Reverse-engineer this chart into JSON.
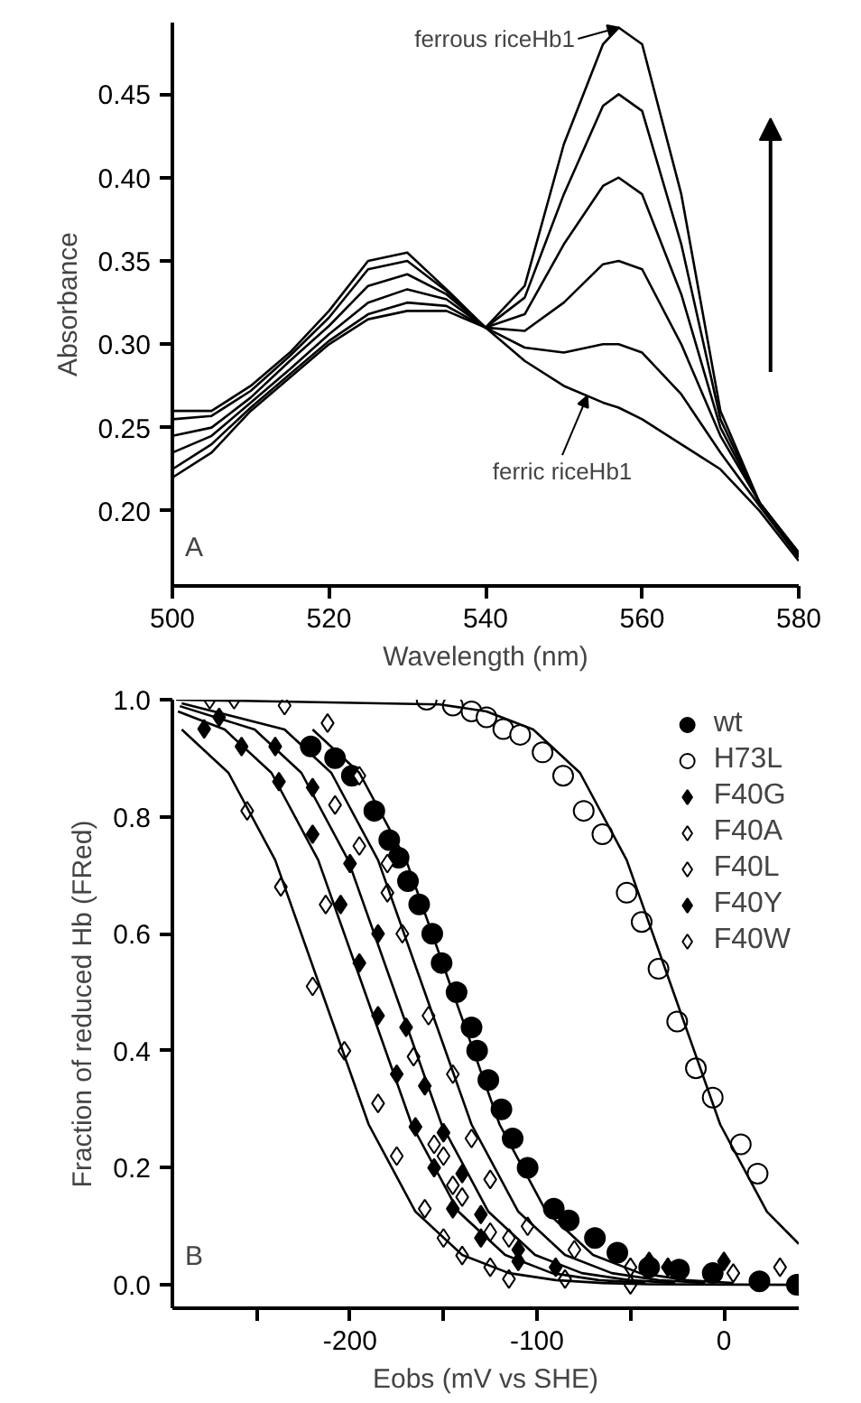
{
  "chart_data": [
    {
      "type": "line",
      "xlabel": "Wavelength (nm)",
      "ylabel": "Absorbance",
      "xlim": [
        500,
        580
      ],
      "ylim": [
        0.155,
        0.493
      ],
      "xticks": [
        500,
        520,
        540,
        560,
        580
      ],
      "yticks": [
        {
          "value": 0.2,
          "label": "0.20"
        },
        {
          "value": 0.25,
          "label": "0.25"
        },
        {
          "value": 0.3,
          "label": "0.30"
        },
        {
          "value": 0.35,
          "label": "0.35"
        },
        {
          "value": 0.4,
          "label": "0.40"
        },
        {
          "value": 0.45,
          "label": "0.45"
        }
      ],
      "grid": false,
      "legend": false,
      "x": [
        500,
        505,
        510,
        515,
        520,
        525,
        530,
        535,
        540,
        545,
        550,
        555,
        557,
        560,
        565,
        570,
        575,
        580
      ],
      "series": [
        {
          "color": "#000000",
          "values": [
            0.22,
            0.235,
            0.26,
            0.28,
            0.3,
            0.315,
            0.32,
            0.32,
            0.31,
            0.29,
            0.275,
            0.265,
            0.262,
            0.255,
            0.24,
            0.225,
            0.2,
            0.17
          ]
        },
        {
          "color": "#000000",
          "values": [
            0.225,
            0.24,
            0.262,
            0.282,
            0.302,
            0.318,
            0.325,
            0.323,
            0.31,
            0.298,
            0.295,
            0.3,
            0.3,
            0.295,
            0.27,
            0.235,
            0.203,
            0.172
          ]
        },
        {
          "color": "#000000",
          "values": [
            0.235,
            0.245,
            0.265,
            0.285,
            0.306,
            0.325,
            0.333,
            0.327,
            0.31,
            0.308,
            0.325,
            0.348,
            0.35,
            0.345,
            0.3,
            0.245,
            0.205,
            0.173
          ]
        },
        {
          "color": "#000000",
          "values": [
            0.245,
            0.25,
            0.268,
            0.29,
            0.311,
            0.335,
            0.342,
            0.33,
            0.31,
            0.318,
            0.36,
            0.395,
            0.4,
            0.39,
            0.33,
            0.25,
            0.205,
            0.174
          ]
        },
        {
          "color": "#000000",
          "values": [
            0.255,
            0.257,
            0.272,
            0.293,
            0.316,
            0.345,
            0.35,
            0.332,
            0.31,
            0.328,
            0.39,
            0.443,
            0.45,
            0.44,
            0.36,
            0.255,
            0.205,
            0.175
          ]
        },
        {
          "color": "#000000",
          "values": [
            0.26,
            0.26,
            0.275,
            0.295,
            0.32,
            0.35,
            0.355,
            0.333,
            0.31,
            0.335,
            0.42,
            0.48,
            0.49,
            0.48,
            0.39,
            0.26,
            0.205,
            0.175
          ]
        }
      ],
      "annotations": [
        {
          "text": "ferrous riceHb1",
          "x": 557,
          "y": 0.49
        },
        {
          "text": "ferric riceHb1",
          "x": 553,
          "y": 0.269
        },
        "A"
      ]
    },
    {
      "type": "scatter",
      "xlabel": "Eobs (mV vs SHE)",
      "ylabel": "Fraction of reduced Hb (FRed)",
      "xlim": [
        -295,
        40
      ],
      "ylim": [
        -0.04,
        1.0
      ],
      "xticks": [
        {
          "value": -250,
          "label": null
        },
        -200,
        {
          "value": -150,
          "label": null
        },
        -100,
        {
          "value": -50,
          "label": null
        },
        0
      ],
      "yticks": [
        {
          "value": 0,
          "label": "0.0"
        },
        {
          "value": 0.2,
          "label": "0.2"
        },
        {
          "value": 0.4,
          "label": "0.4"
        },
        {
          "value": 0.6,
          "label": "0.6"
        },
        {
          "value": 0.8,
          "label": "0.8"
        },
        {
          "value": 1,
          "label": "1.0"
        }
      ],
      "grid": false,
      "legend": "top right",
      "series": [
        {
          "name": "wt",
          "color": "#000000",
          "marker": "circle",
          "x": [
            -221,
            -208,
            -199,
            -187,
            -179,
            -174,
            -169,
            -163,
            -156,
            -151,
            -143,
            -135,
            -132,
            -126,
            -119,
            -113,
            -105,
            -91,
            -83,
            -69,
            -57,
            -40,
            -24,
            -6,
            19,
            39
          ],
          "values": [
            0.92,
            0.9,
            0.87,
            0.81,
            0.76,
            0.73,
            0.69,
            0.65,
            0.6,
            0.55,
            0.5,
            0.44,
            0.4,
            0.35,
            0.3,
            0.25,
            0.2,
            0.13,
            0.11,
            0.08,
            0.055,
            0.03,
            0.026,
            0.02,
            0.006,
            0.0
          ]
        },
        {
          "name": "H73L",
          "color": "#ffffff",
          "marker": "circle",
          "x": [
            -159,
            -145,
            -135,
            -127,
            -118,
            -109,
            -97,
            -86,
            -75,
            -65,
            -52,
            -44,
            -35,
            -25,
            -15,
            -6,
            9,
            18
          ],
          "values": [
            1.0,
            0.99,
            0.98,
            0.97,
            0.95,
            0.94,
            0.91,
            0.87,
            0.81,
            0.77,
            0.67,
            0.62,
            0.54,
            0.45,
            0.37,
            0.32,
            0.24,
            0.19
          ]
        },
        {
          "name": "F40G",
          "color": "#000000",
          "marker": "diamond",
          "x": [
            -270,
            -240,
            -220,
            -200,
            -185,
            -170,
            -160,
            -150,
            -140,
            -130,
            -110,
            -90,
            -30
          ],
          "values": [
            0.97,
            0.92,
            0.85,
            0.72,
            0.6,
            0.44,
            0.34,
            0.26,
            0.19,
            0.12,
            0.06,
            0.03,
            0.03
          ]
        },
        {
          "name": "F40A",
          "color": "#ffffff",
          "marker": "diamond",
          "x": [
            -255,
            -237,
            -220,
            -203,
            -185,
            -175,
            -160,
            -150,
            -140,
            -125,
            -115,
            -50
          ],
          "values": [
            0.81,
            0.68,
            0.51,
            0.4,
            0.31,
            0.22,
            0.13,
            0.08,
            0.05,
            0.03,
            0.01,
            0.0
          ]
        },
        {
          "name": "F40L",
          "color": "#ffffff",
          "marker": "diamond",
          "x": [
            -208,
            -195,
            -180,
            -213,
            -166,
            -155,
            -150,
            -145,
            -140,
            -125,
            -115,
            -85,
            5
          ],
          "values": [
            0.82,
            0.75,
            0.67,
            0.65,
            0.39,
            0.24,
            0.22,
            0.17,
            0.15,
            0.09,
            0.08,
            0.01,
            0.02
          ]
        },
        {
          "name": "F40Y",
          "color": "#000000",
          "marker": "diamond",
          "x": [
            -278,
            -258,
            -238,
            -220,
            -205,
            -195,
            -185,
            -175,
            -165,
            -155,
            -145,
            -130,
            -110,
            -40,
            0
          ],
          "values": [
            0.95,
            0.92,
            0.86,
            0.77,
            0.65,
            0.55,
            0.46,
            0.36,
            0.27,
            0.2,
            0.13,
            0.08,
            0.04,
            0.04,
            0.04
          ]
        },
        {
          "name": "F40W",
          "color": "#ffffff",
          "marker": "diamond",
          "x": [
            -275,
            -262,
            -235,
            -212,
            -195,
            -180,
            -172,
            -158,
            -145,
            -135,
            -125,
            -105,
            -80,
            -50,
            30
          ],
          "values": [
            1.0,
            1.0,
            0.99,
            0.96,
            0.87,
            0.72,
            0.6,
            0.46,
            0.36,
            0.25,
            0.18,
            0.1,
            0.06,
            0.03,
            0.03
          ]
        },
        {
          "type": "line",
          "color": "#000000",
          "x": [
            -290,
            -265,
            -240,
            -215,
            -190,
            -165,
            -140,
            -115,
            -90,
            -65,
            -40,
            40
          ],
          "values": [
            0.949,
            0.875,
            0.726,
            0.5,
            0.274,
            0.125,
            0.051,
            0.02,
            0.008,
            0.003,
            0.001,
            0.0
          ]
        },
        {
          "type": "line",
          "color": "#000000",
          "x": [
            -292,
            -267,
            -242,
            -217,
            -192,
            -167,
            -142,
            -117,
            -92,
            -67,
            -42
          ],
          "values": [
            0.98,
            0.949,
            0.875,
            0.726,
            0.5,
            0.274,
            0.125,
            0.051,
            0.02,
            0.008,
            0.003
          ]
        },
        {
          "type": "line",
          "color": "#000000",
          "x": [
            -291,
            -251,
            -226,
            -201,
            -176,
            -151,
            -126,
            -101,
            -76,
            -51,
            -26
          ],
          "values": [
            0.989,
            0.949,
            0.875,
            0.726,
            0.5,
            0.274,
            0.125,
            0.051,
            0.02,
            0.008,
            0.003
          ]
        },
        {
          "type": "line",
          "color": "#000000",
          "x": [
            -290,
            -235,
            -210,
            -185,
            -160,
            -135,
            -110,
            -85,
            -60,
            -35,
            -10
          ],
          "values": [
            0.994,
            0.949,
            0.875,
            0.726,
            0.5,
            0.274,
            0.125,
            0.051,
            0.02,
            0.008,
            0.003
          ]
        },
        {
          "type": "line",
          "color": "#000000",
          "x": [
            -220,
            -195,
            -170,
            -145,
            -120,
            -95,
            -70,
            -45,
            -20,
            5
          ],
          "values": [
            0.949,
            0.875,
            0.726,
            0.5,
            0.274,
            0.125,
            0.051,
            0.02,
            0.008,
            0.003
          ]
        },
        {
          "type": "line",
          "color": "#000000",
          "x": [
            -293,
            -152,
            -127,
            -102,
            -77,
            -52,
            -27,
            -2,
            23,
            40
          ],
          "values": [
            1.0,
            0.992,
            0.98,
            0.949,
            0.875,
            0.726,
            0.5,
            0.274,
            0.125,
            0.07
          ]
        }
      ],
      "annotations": [
        "B"
      ]
    }
  ]
}
